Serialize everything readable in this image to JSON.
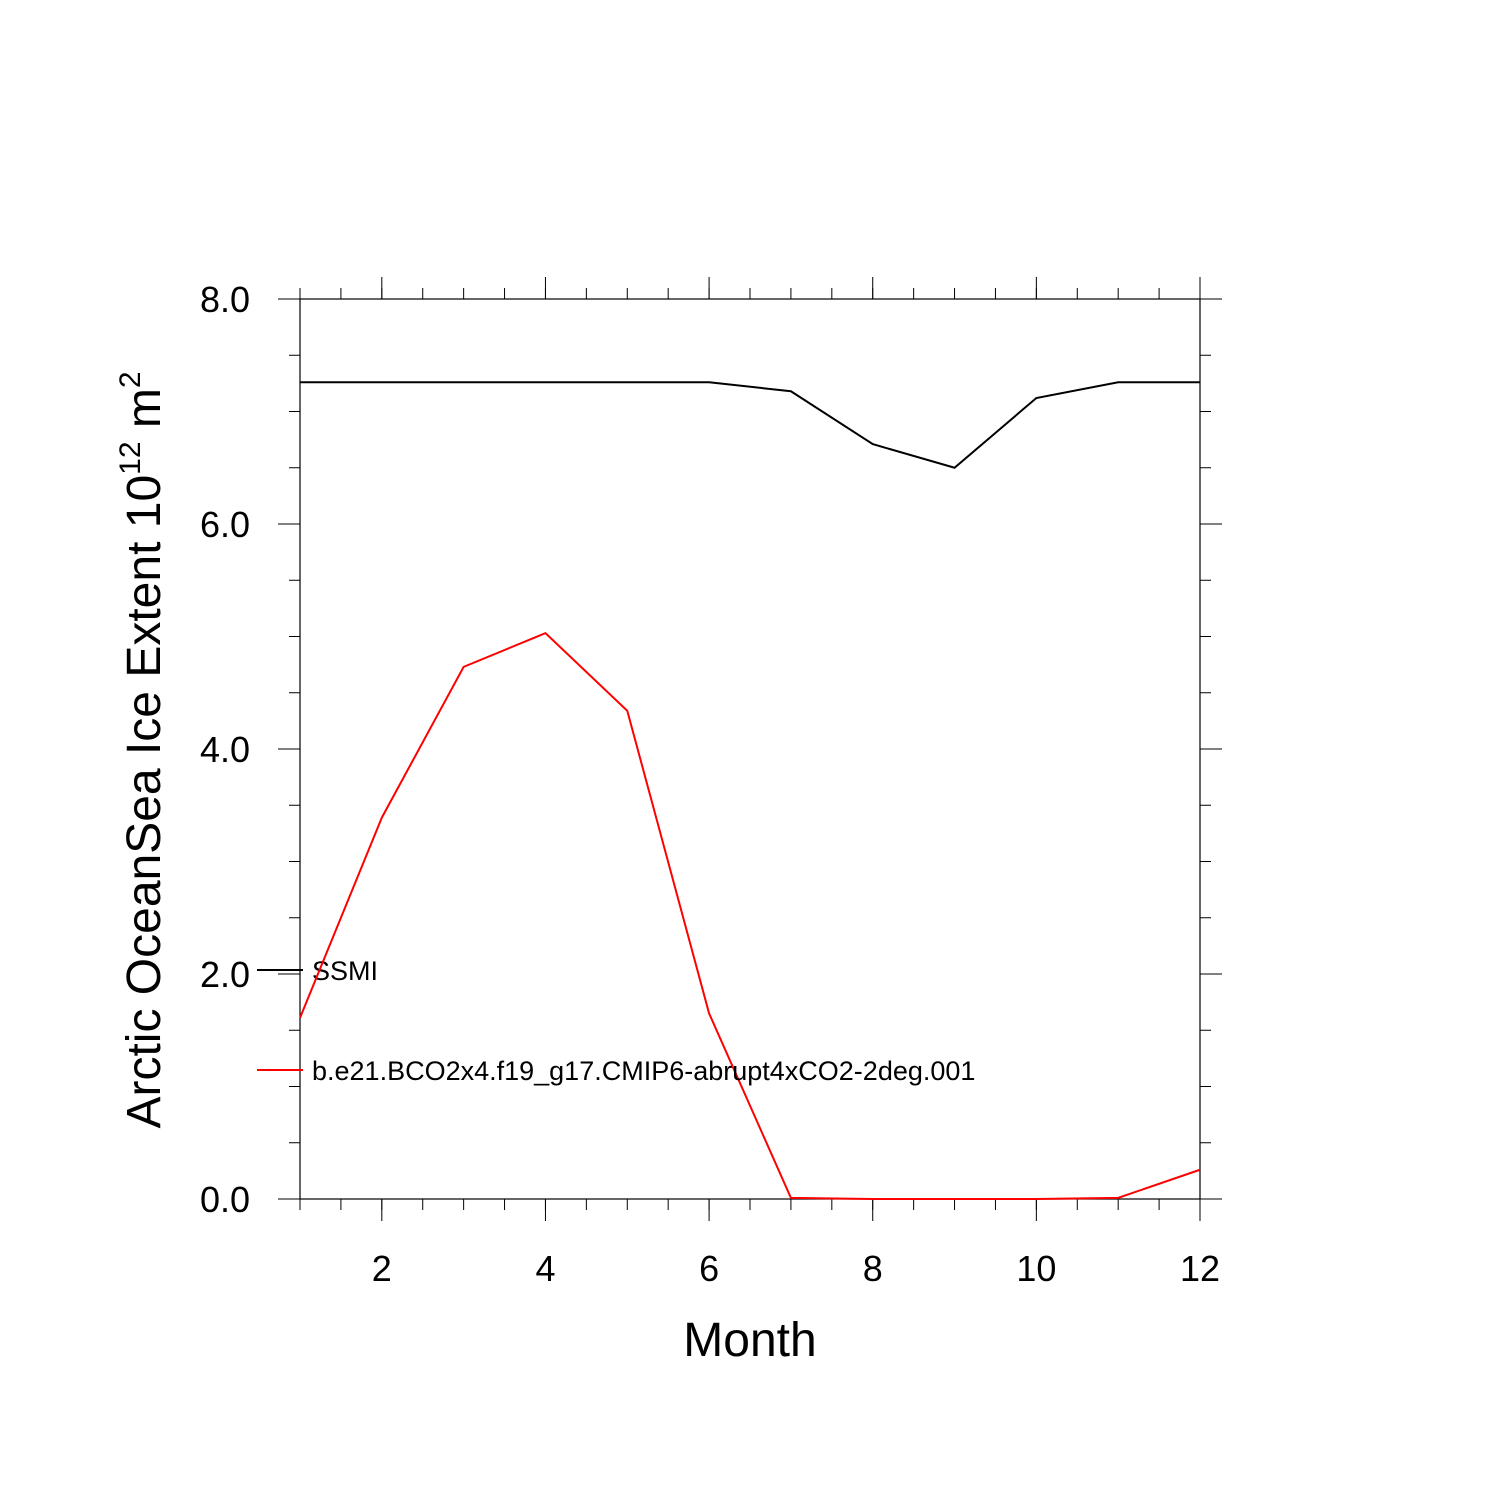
{
  "chart_data": {
    "type": "line",
    "xlabel": "Month",
    "ylabel": {
      "text": "Arctic OceanSea Ice Extent 10",
      "exponent": "12",
      "unit": " m",
      "unit_exponent": "2"
    },
    "x": [
      1,
      2,
      3,
      4,
      5,
      6,
      7,
      8,
      9,
      10,
      11,
      12
    ],
    "series": [
      {
        "name": "SSMI",
        "color": "#000000",
        "values": [
          7.26,
          7.26,
          7.26,
          7.26,
          7.26,
          7.26,
          7.18,
          6.71,
          6.5,
          7.12,
          7.26,
          7.26
        ]
      },
      {
        "name": "b.e21.BCO2x4.f19_g17.CMIP6-abrupt4xCO2-2deg.001",
        "color": "#ff0000",
        "values": [
          1.61,
          3.39,
          4.73,
          5.03,
          4.34,
          1.65,
          0.01,
          0.0,
          0.0,
          0.0,
          0.01,
          0.26
        ]
      }
    ],
    "xlim": [
      1,
      12
    ],
    "xticks": [
      2,
      4,
      6,
      8,
      10,
      12
    ],
    "ylim": [
      0,
      8
    ],
    "yticks": [
      {
        "value": 0,
        "label": "0.0"
      },
      {
        "value": 2,
        "label": "2.0"
      },
      {
        "value": 4,
        "label": "4.0"
      },
      {
        "value": 6,
        "label": "6.0"
      },
      {
        "value": 8,
        "label": "8.0"
      }
    ],
    "legend": "lower left"
  }
}
